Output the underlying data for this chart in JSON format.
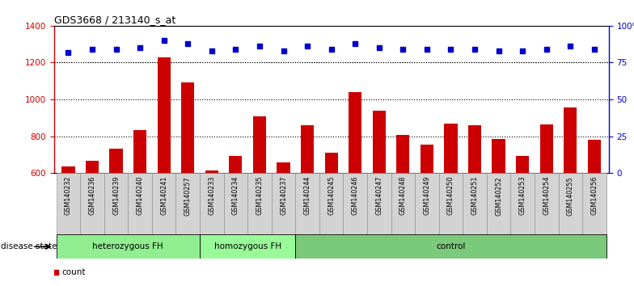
{
  "title": "GDS3668 / 213140_s_at",
  "samples": [
    "GSM140232",
    "GSM140236",
    "GSM140239",
    "GSM140240",
    "GSM140241",
    "GSM140257",
    "GSM140233",
    "GSM140234",
    "GSM140235",
    "GSM140237",
    "GSM140244",
    "GSM140245",
    "GSM140246",
    "GSM140247",
    "GSM140248",
    "GSM140249",
    "GSM140250",
    "GSM140251",
    "GSM140252",
    "GSM140253",
    "GSM140254",
    "GSM140255",
    "GSM140256"
  ],
  "counts": [
    638,
    668,
    734,
    832,
    1228,
    1092,
    614,
    692,
    906,
    656,
    858,
    710,
    1038,
    938,
    806,
    756,
    870,
    858,
    786,
    692,
    862,
    958,
    782
  ],
  "percentiles": [
    82,
    84,
    84,
    85,
    90,
    88,
    83,
    84,
    86,
    83,
    86,
    84,
    88,
    85,
    84,
    84,
    84,
    84,
    83,
    83,
    84,
    86,
    84
  ],
  "groups": [
    {
      "label": "heterozygous FH",
      "start": 0,
      "end": 6,
      "color": "#90EE90"
    },
    {
      "label": "homozygous FH",
      "start": 6,
      "end": 10,
      "color": "#98FB98"
    },
    {
      "label": "control",
      "start": 10,
      "end": 23,
      "color": "#7BC97B"
    }
  ],
  "ylim_left": [
    600,
    1400
  ],
  "ylim_right": [
    0,
    100
  ],
  "yticks_left": [
    600,
    800,
    1000,
    1200,
    1400
  ],
  "yticks_right": [
    0,
    25,
    50,
    75,
    100
  ],
  "yticklabels_right": [
    "0",
    "25",
    "50",
    "75",
    "100%"
  ],
  "bar_color": "#CC0000",
  "dot_color": "#0000CC",
  "bg_color": "#D3D3D3",
  "left_axis_color": "#CC0000",
  "right_axis_color": "#0000CC",
  "grid_color": "black"
}
